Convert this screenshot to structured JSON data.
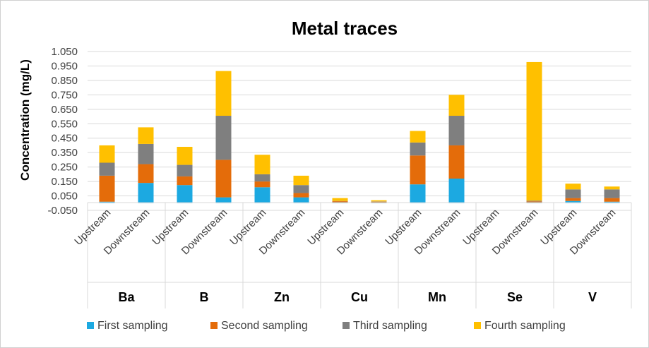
{
  "chart_data": {
    "type": "bar",
    "stacked": true,
    "title": "Metal traces",
    "ylabel": "Concentration (mg/L)",
    "xlabel": "",
    "ylim": [
      -0.05,
      1.05
    ],
    "yticks": [
      -0.05,
      0.05,
      0.15,
      0.25,
      0.35,
      0.45,
      0.55,
      0.65,
      0.75,
      0.85,
      0.95,
      1.05
    ],
    "ytick_labels": [
      "-0.050",
      "0.050",
      "0.150",
      "0.250",
      "0.350",
      "0.450",
      "0.550",
      "0.650",
      "0.750",
      "0.850",
      "0.950",
      "1.050"
    ],
    "groups": [
      "Ba",
      "B",
      "Zn",
      "Cu",
      "Mn",
      "Se",
      "V"
    ],
    "categories": [
      "Upstream",
      "Downstream"
    ],
    "series": [
      {
        "name": "First sampling",
        "color": "#1ca9e1",
        "values": [
          [
            0.01,
            0.14
          ],
          [
            0.125,
            0.04
          ],
          [
            0.11,
            0.04
          ],
          [
            0.005,
            0.002
          ],
          [
            0.13,
            0.17
          ],
          [
            0.0,
            0.002
          ],
          [
            0.015,
            0.01
          ]
        ]
      },
      {
        "name": "Second sampling",
        "color": "#e46c0a",
        "values": [
          [
            0.18,
            0.13
          ],
          [
            0.06,
            0.26
          ],
          [
            0.04,
            0.03
          ],
          [
            0.008,
            0.008
          ],
          [
            0.2,
            0.23
          ],
          [
            0.0,
            0.01
          ],
          [
            0.02,
            0.025
          ]
        ]
      },
      {
        "name": "Third sampling",
        "color": "#7f7f7f",
        "values": [
          [
            0.09,
            0.14
          ],
          [
            0.08,
            0.305
          ],
          [
            0.05,
            0.055
          ],
          [
            0.002,
            0.002
          ],
          [
            0.09,
            0.205
          ],
          [
            0.0,
            0.005
          ],
          [
            0.06,
            0.06
          ]
        ]
      },
      {
        "name": "Fourth sampling",
        "color": "#ffc000",
        "values": [
          [
            0.12,
            0.115
          ],
          [
            0.125,
            0.31
          ],
          [
            0.135,
            0.065
          ],
          [
            0.02,
            0.008
          ],
          [
            0.08,
            0.145
          ],
          [
            0.0,
            0.96
          ],
          [
            0.04,
            0.02
          ]
        ]
      }
    ],
    "legend_position": "bottom",
    "grid": true
  }
}
